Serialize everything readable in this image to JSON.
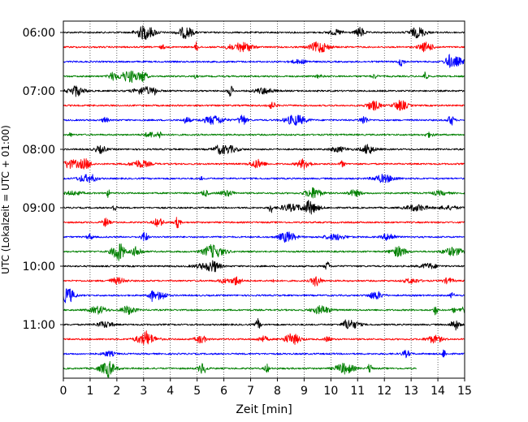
{
  "chart_data": {
    "type": "line",
    "title": "",
    "xlabel": "Zeit  [min]",
    "ylabel": "UTC (Lokalzeit = UTC + 01:00)",
    "xlim": [
      0,
      15
    ],
    "xticks": [
      0,
      1,
      2,
      3,
      4,
      5,
      6,
      7,
      8,
      9,
      10,
      11,
      12,
      13,
      14,
      15
    ],
    "ytick_labels": [
      "06:00",
      "07:00",
      "08:00",
      "09:00",
      "10:00",
      "11:00"
    ],
    "trace_interval_min": 15,
    "first_trace_start": "06:00",
    "last_trace_end_min": 13.2,
    "grid": "vertical dotted at each minute",
    "legend": "none",
    "trace_colors": [
      "#000000",
      "#ff0000",
      "#0000ff",
      "#008000"
    ],
    "traces": [
      {
        "start": "06:00",
        "color": "#000000"
      },
      {
        "start": "06:15",
        "color": "#ff0000"
      },
      {
        "start": "06:30",
        "color": "#0000ff"
      },
      {
        "start": "06:45",
        "color": "#008000"
      },
      {
        "start": "07:00",
        "color": "#000000"
      },
      {
        "start": "07:15",
        "color": "#ff0000"
      },
      {
        "start": "07:30",
        "color": "#0000ff"
      },
      {
        "start": "07:45",
        "color": "#008000"
      },
      {
        "start": "08:00",
        "color": "#000000"
      },
      {
        "start": "08:15",
        "color": "#ff0000"
      },
      {
        "start": "08:30",
        "color": "#0000ff"
      },
      {
        "start": "08:45",
        "color": "#008000"
      },
      {
        "start": "09:00",
        "color": "#000000"
      },
      {
        "start": "09:15",
        "color": "#ff0000"
      },
      {
        "start": "09:30",
        "color": "#0000ff"
      },
      {
        "start": "09:45",
        "color": "#008000"
      },
      {
        "start": "10:00",
        "color": "#000000"
      },
      {
        "start": "10:15",
        "color": "#ff0000"
      },
      {
        "start": "10:30",
        "color": "#0000ff"
      },
      {
        "start": "10:45",
        "color": "#008000"
      },
      {
        "start": "11:00",
        "color": "#000000"
      },
      {
        "start": "11:15",
        "color": "#ff0000"
      },
      {
        "start": "11:30",
        "color": "#0000ff"
      },
      {
        "start": "11:45",
        "color": "#008000"
      }
    ]
  }
}
